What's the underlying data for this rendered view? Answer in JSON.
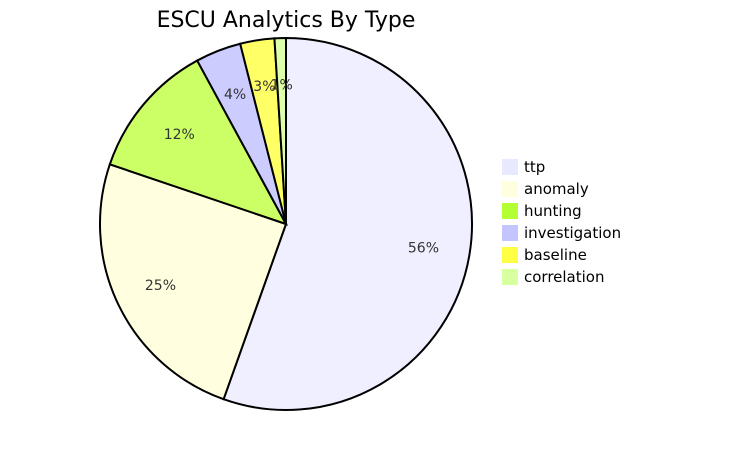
{
  "chart_data": {
    "type": "pie",
    "title": "ESCU Analytics By Type",
    "slices": [
      {
        "label": "ttp",
        "value": 56,
        "display": "56%",
        "color": "#EFEFFF"
      },
      {
        "label": "anomaly",
        "value": 25,
        "display": "25%",
        "color": "#FFFFE0"
      },
      {
        "label": "hunting",
        "value": 12,
        "display": "12%",
        "color": "#CCFF66"
      },
      {
        "label": "investigation",
        "value": 4,
        "display": "4%",
        "color": "#CCCCFF"
      },
      {
        "label": "baseline",
        "value": 3,
        "display": "3%",
        "color": "#FFFF66"
      },
      {
        "label": "correlation",
        "value": 1,
        "display": "1%",
        "color": "#DDFFAA"
      }
    ],
    "legend_position": "right"
  },
  "legend_colors": {
    "ttp": "#E8E8FF",
    "anomaly": "#FFFFE0",
    "hunting": "#B3FF33",
    "investigation": "#C4C4FF",
    "baseline": "#FFFF44",
    "correlation": "#D8FFA0"
  }
}
